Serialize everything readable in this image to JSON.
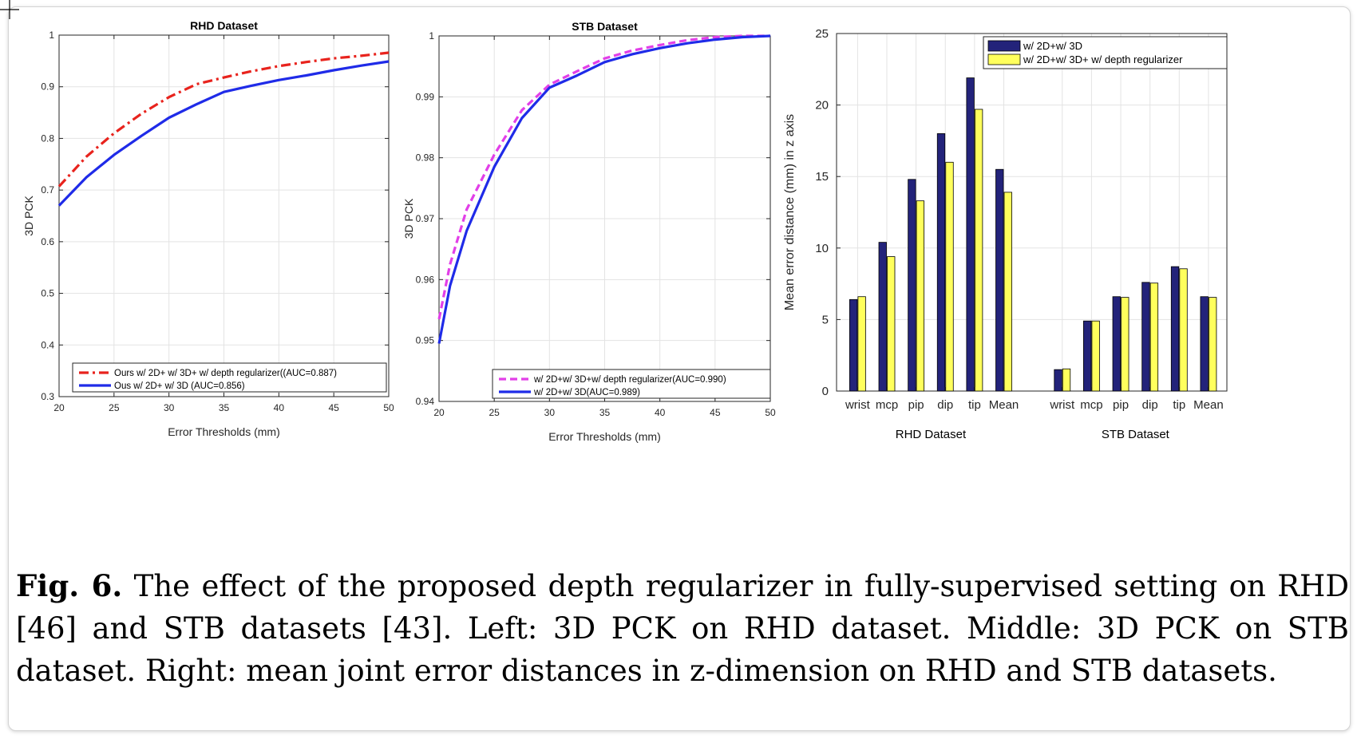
{
  "caption": {
    "label": "Fig. 6.",
    "text": "The effect of the proposed depth regularizer in fully-supervised setting on RHD [46] and STB datasets [43]. Left: 3D PCK on RHD dataset. Middle: 3D PCK on STB dataset. Right: mean joint error distances in z-dimension on RHD and STB datasets."
  },
  "chart_data": [
    {
      "type": "line",
      "title": "RHD Dataset",
      "xlabel": "Error Thresholds (mm)",
      "ylabel": "3D PCK",
      "xlim": [
        20,
        50
      ],
      "ylim": [
        0.3,
        1
      ],
      "xticks": [
        "20",
        "25",
        "30",
        "35",
        "40",
        "45",
        "50"
      ],
      "yticks": [
        "0.3",
        "0.4",
        "0.5",
        "0.6",
        "0.7",
        "0.8",
        "0.9",
        "1"
      ],
      "grid": true,
      "legend_position": "bottom",
      "series": [
        {
          "name": "Ours w/ 2D+ w/ 3D+ w/ depth regularizer((AUC=0.887)",
          "color": "#e8231d",
          "dash": "dashdot",
          "x": [
            20,
            22.5,
            25,
            27.5,
            30,
            32.5,
            35,
            37.5,
            40,
            42.5,
            45,
            47.5,
            50
          ],
          "y": [
            0.707,
            0.765,
            0.81,
            0.848,
            0.88,
            0.905,
            0.918,
            0.93,
            0.94,
            0.948,
            0.955,
            0.96,
            0.966
          ]
        },
        {
          "name": "Ous w/ 2D+ w/ 3D (AUC=0.856)",
          "color": "#1f2be8",
          "dash": "solid",
          "x": [
            20,
            22.5,
            25,
            27.5,
            30,
            32.5,
            35,
            37.5,
            40,
            42.5,
            45,
            47.5,
            50
          ],
          "y": [
            0.67,
            0.725,
            0.768,
            0.805,
            0.84,
            0.866,
            0.89,
            0.902,
            0.913,
            0.922,
            0.932,
            0.941,
            0.949
          ]
        }
      ]
    },
    {
      "type": "line",
      "title": "STB Dataset",
      "xlabel": "Error Thresholds (mm)",
      "ylabel": "3D PCK",
      "xlim": [
        20,
        50
      ],
      "ylim": [
        0.94,
        1
      ],
      "xticks": [
        "20",
        "25",
        "30",
        "35",
        "40",
        "45",
        "50"
      ],
      "yticks": [
        "0.94",
        "0.95",
        "0.96",
        "0.97",
        "0.98",
        "0.99",
        "1"
      ],
      "grid": true,
      "legend_position": "bottom",
      "series": [
        {
          "name": "w/ 2D+w/ 3D+w/ depth regularizer(AUC=0.990)",
          "color": "#e23fe8",
          "dash": "dashed",
          "x": [
            20,
            21,
            22.5,
            25,
            27.5,
            30,
            32.5,
            35,
            37.5,
            40,
            42.5,
            45,
            47.5,
            50
          ],
          "y": [
            0.9535,
            0.9625,
            0.9715,
            0.9805,
            0.9878,
            0.992,
            0.9942,
            0.9963,
            0.9976,
            0.9985,
            0.9993,
            0.9998,
            1.0,
            1.0
          ]
        },
        {
          "name": "w/ 2D+w/ 3D(AUC=0.989)",
          "color": "#1f2be8",
          "dash": "solid",
          "x": [
            20,
            21,
            22.5,
            25,
            27.5,
            30,
            32.5,
            35,
            37.5,
            40,
            42.5,
            45,
            47.5,
            50
          ],
          "y": [
            0.9495,
            0.959,
            0.968,
            0.9785,
            0.9865,
            0.9915,
            0.9935,
            0.9957,
            0.997,
            0.998,
            0.9988,
            0.9994,
            0.9998,
            1.0
          ]
        }
      ]
    },
    {
      "type": "bar",
      "ylabel": "Mean error distance (mm) in z axis",
      "ylim": [
        0,
        25
      ],
      "yticks": [
        "0",
        "5",
        "10",
        "15",
        "20",
        "25"
      ],
      "grid": true,
      "legend_position": "top-right",
      "groups": [
        {
          "name": "RHD Dataset",
          "categories": [
            "wrist",
            "mcp",
            "pip",
            "dip",
            "tip",
            "Mean"
          ]
        },
        {
          "name": "STB Dataset",
          "categories": [
            "wrist",
            "mcp",
            "pip",
            "dip",
            "tip",
            "Mean"
          ]
        }
      ],
      "series": [
        {
          "name": "w/ 2D+w/ 3D",
          "color": "#23237a",
          "values": [
            6.4,
            10.4,
            14.8,
            18.0,
            21.9,
            15.5,
            1.5,
            4.9,
            6.6,
            7.6,
            8.7,
            6.6
          ]
        },
        {
          "name": "w/ 2D+w/ 3D+ w/ depth regularizer",
          "color": "#ffff5c",
          "values": [
            6.6,
            9.4,
            13.3,
            16.0,
            19.7,
            13.9,
            1.55,
            4.9,
            6.55,
            7.55,
            8.55,
            6.55
          ]
        }
      ]
    }
  ]
}
